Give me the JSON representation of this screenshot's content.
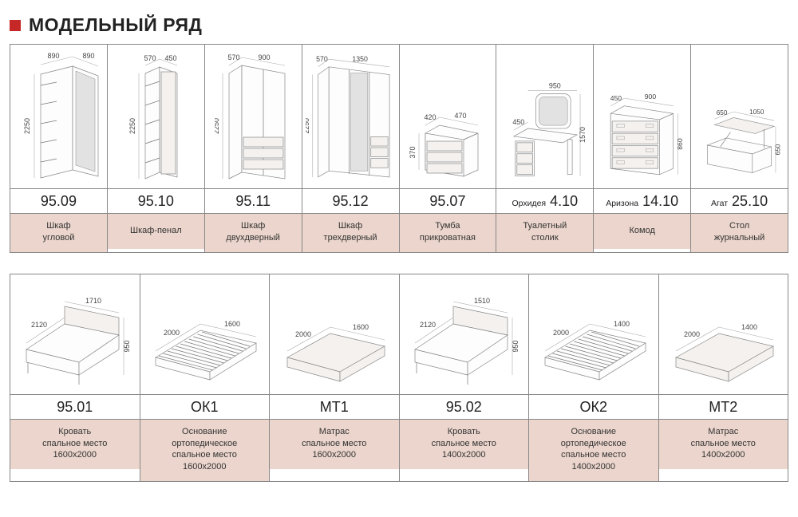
{
  "title": "МОДЕЛЬНЫЙ РЯД",
  "colors": {
    "accent_square": "#c62828",
    "desc_bg": "#ebd5cc",
    "border": "#888888",
    "line": "#777777",
    "text": "#222222"
  },
  "fontsize": {
    "title": 23,
    "code": 18,
    "code_prefix": 10.5,
    "desc": 11,
    "dim": 9
  },
  "row1": [
    {
      "code": "95.09",
      "prefix": "",
      "desc": [
        "Шкаф",
        "угловой"
      ],
      "dims": {
        "w1": "890",
        "w2": "890",
        "h": "2250"
      },
      "draw": "corner_wardrobe"
    },
    {
      "code": "95.10",
      "prefix": "",
      "desc": [
        "Шкаф-пенал"
      ],
      "dims": {
        "d": "570",
        "w": "450",
        "h": "2250"
      },
      "draw": "pencil_wardrobe"
    },
    {
      "code": "95.11",
      "prefix": "",
      "desc": [
        "Шкаф",
        "двухдверный"
      ],
      "dims": {
        "d": "570",
        "w": "900",
        "h": "2250"
      },
      "draw": "wardrobe2"
    },
    {
      "code": "95.12",
      "prefix": "",
      "desc": [
        "Шкаф",
        "трехдверный"
      ],
      "dims": {
        "d": "570",
        "w": "1350",
        "h": "2250"
      },
      "draw": "wardrobe3"
    },
    {
      "code": "95.07",
      "prefix": "",
      "desc": [
        "Тумба",
        "прикроватная"
      ],
      "dims": {
        "d": "420",
        "w": "470",
        "h": "370"
      },
      "draw": "nightstand"
    },
    {
      "code": "4.10",
      "prefix": "Орхидея",
      "desc": [
        "Туалетный",
        "столик"
      ],
      "dims": {
        "w": "950",
        "d": "450",
        "h": "1570"
      },
      "draw": "vanity"
    },
    {
      "code": "14.10",
      "prefix": "Аризона",
      "desc": [
        "Комод"
      ],
      "dims": {
        "d": "450",
        "w": "900",
        "h": "860"
      },
      "draw": "dresser"
    },
    {
      "code": "25.10",
      "prefix": "Агат",
      "desc": [
        "Стол",
        "журнальный"
      ],
      "dims": {
        "d": "650",
        "w": "1050",
        "h": "650"
      },
      "draw": "coffee_table"
    }
  ],
  "row2": [
    {
      "code": "95.01",
      "prefix": "",
      "desc": [
        "Кровать",
        "спальное место",
        "1600x2000"
      ],
      "dims": {
        "w": "1710",
        "l": "2120",
        "h": "950"
      },
      "draw": "bed"
    },
    {
      "code": "ОК1",
      "prefix": "",
      "desc": [
        "Основание",
        "ортопедическое",
        "спальное место",
        "1600x2000"
      ],
      "dims": {
        "l": "2000",
        "w": "1600"
      },
      "draw": "ortho"
    },
    {
      "code": "МТ1",
      "prefix": "",
      "desc": [
        "Матрас",
        "спальное место",
        "1600x2000"
      ],
      "dims": {
        "l": "2000",
        "w": "1600"
      },
      "draw": "mattress"
    },
    {
      "code": "95.02",
      "prefix": "",
      "desc": [
        "Кровать",
        "спальное место",
        "1400x2000"
      ],
      "dims": {
        "w": "1510",
        "l": "2120",
        "h": "950"
      },
      "draw": "bed"
    },
    {
      "code": "ОК2",
      "prefix": "",
      "desc": [
        "Основание",
        "ортопедическое",
        "спальное место",
        "1400x2000"
      ],
      "dims": {
        "l": "2000",
        "w": "1400"
      },
      "draw": "ortho"
    },
    {
      "code": "МТ2",
      "prefix": "",
      "desc": [
        "Матрас",
        "спальное место",
        "1400x2000"
      ],
      "dims": {
        "l": "2000",
        "w": "1400"
      },
      "draw": "mattress"
    }
  ]
}
